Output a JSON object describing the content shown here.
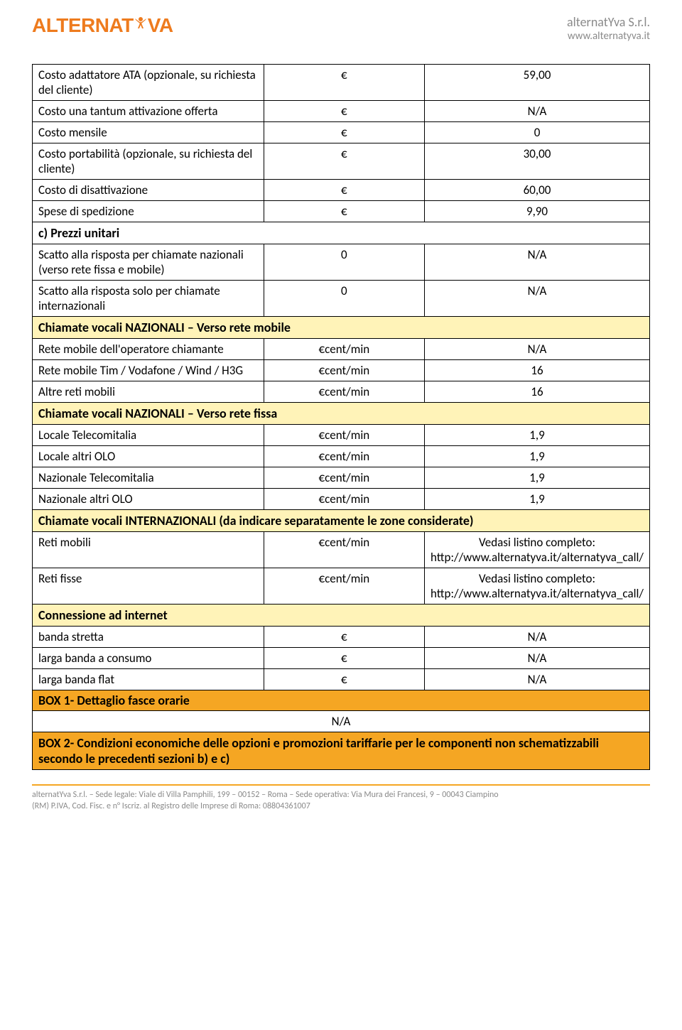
{
  "header": {
    "logo_pre": "ALTERNAT",
    "logo_post": "VA",
    "company_name": "alternatYva S.r.l.",
    "company_url": "www.alternatyva.it"
  },
  "rows": [
    {
      "c1": "Costo adattatore ATA (opzionale, su richiesta del cliente)",
      "c2": "€",
      "c3": "59,00"
    },
    {
      "c1": "Costo una tantum attivazione offerta",
      "c2": "€",
      "c3": "N/A"
    },
    {
      "c1": "Costo mensile",
      "c2": "€",
      "c3": "0"
    },
    {
      "c1": "Costo portabilità (opzionale, su richiesta del cliente)",
      "c2": "€",
      "c3": "30,00"
    },
    {
      "c1": "Costo di disattivazione",
      "c2": "€",
      "c3": "60,00"
    },
    {
      "c1": "Spese di spedizione",
      "c2": "€",
      "c3": "9,90"
    }
  ],
  "section_c": "c) Prezzi unitari",
  "rows_c": [
    {
      "c1": "Scatto alla risposta per chiamate nazionali (verso rete fissa e mobile)",
      "c2": "0",
      "c3": "N/A"
    },
    {
      "c1": "Scatto alla risposta solo per chiamate internazionali",
      "c2": "0",
      "c3": "N/A"
    }
  ],
  "section_naz_mobile": "Chiamate vocali NAZIONALI – Verso rete mobile",
  "rows_naz_mobile": [
    {
      "c1": "Rete mobile dell'operatore chiamante",
      "c2": "€cent/min",
      "c3": "N/A"
    },
    {
      "c1": "Rete mobile Tim / Vodafone / Wind / H3G",
      "c2": "€cent/min",
      "c3": "16"
    },
    {
      "c1": "Altre reti mobili",
      "c2": "€cent/min",
      "c3": "16"
    }
  ],
  "section_naz_fissa": "Chiamate vocali NAZIONALI – Verso rete fissa",
  "rows_naz_fissa": [
    {
      "c1": "Locale Telecomitalia",
      "c2": "€cent/min",
      "c3": "1,9"
    },
    {
      "c1": "Locale altri OLO",
      "c2": "€cent/min",
      "c3": "1,9"
    },
    {
      "c1": "Nazionale Telecomitalia",
      "c2": "€cent/min",
      "c3": "1,9"
    },
    {
      "c1": "Nazionale altri OLO",
      "c2": "€cent/min",
      "c3": "1,9"
    }
  ],
  "section_int": "Chiamate vocali INTERNAZIONALI (da indicare separatamente le zone considerate)",
  "rows_int": [
    {
      "c1": "Reti mobili",
      "c2": "€cent/min",
      "c3": "Vedasi listino completo: http://www.alternatyva.it/alternatyva_call/"
    },
    {
      "c1": "Reti fisse",
      "c2": "€cent/min",
      "c3": "Vedasi listino completo: http://www.alternatyva.it/alternatyva_call/"
    }
  ],
  "section_conn": "Connessione ad internet",
  "rows_conn": [
    {
      "c1": "banda stretta",
      "c2": "€",
      "c3": "N/A"
    },
    {
      "c1": "larga banda a consumo",
      "c2": "€",
      "c3": "N/A"
    },
    {
      "c1": "larga banda flat",
      "c2": "€",
      "c3": "N/A"
    }
  ],
  "box1_title": "BOX 1- Dettaglio fasce orarie",
  "box1_value": "N/A",
  "box2_title": "BOX 2- Condizioni economiche delle opzioni e promozioni tariffarie per le componenti non schematizzabili secondo le precedenti sezioni b) e c)",
  "footer": {
    "line1": "alternatYva S.r.l. – Sede legale: Viale di Villa Pamphili, 199 – 00152 – Roma – Sede operativa: Via Mura dei Francesi, 9 – 00043 Ciampino",
    "line2": "(RM) P.IVA, Cod. Fisc. e n° Iscriz. al Registro delle Imprese di Roma: 08804361007"
  },
  "colors": {
    "orange_brand": "#ee7b1e",
    "orange_section": "#f5a623",
    "yellow_section": "#fff3b8",
    "gray_text": "#8a8a8a",
    "border": "#000000"
  }
}
